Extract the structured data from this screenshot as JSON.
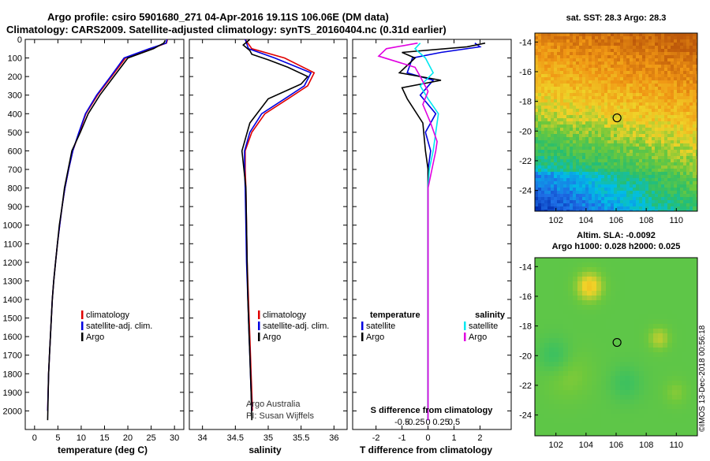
{
  "figure": {
    "title_line1": "Argo profile: csiro 5901680_271 04-Apr-2016 19.11S 106.06E (DM data)",
    "title_line2": "Climatology: CARS2009. Satellite-adjusted climatology: synTS_20160404.nc (0.31d earlier)",
    "watermark": "©IMOS 13-Dec-2018 00:56:18",
    "credit_line1": "Argo Australia",
    "credit_line2": "PI: Susan Wijffels"
  },
  "colors": {
    "climatology": "#e00000",
    "satellite_adj": "#0000e0",
    "argo": "#000000",
    "satellite": "#00e8f0",
    "argo_salinity_diff": "#e000e0"
  },
  "chart_data": [
    {
      "id": "temperature",
      "type": "line",
      "xlabel": "temperature (deg C)",
      "xlim": [
        -2,
        32
      ],
      "xticks": [
        0,
        5,
        10,
        15,
        20,
        25,
        30
      ],
      "ylim": [
        2100,
        0
      ],
      "yticks": [
        0,
        100,
        200,
        300,
        400,
        500,
        600,
        700,
        800,
        900,
        1000,
        1100,
        1200,
        1300,
        1400,
        1500,
        1600,
        1700,
        1800,
        1900,
        2000
      ],
      "legend": [
        "climatology",
        "satellite-adj. clim.",
        "Argo"
      ],
      "series": [
        {
          "name": "climatology",
          "x": [
            28.5,
            28.3,
            25.0,
            19.5,
            16.5,
            13.5,
            11.0,
            9.6,
            8.2,
            7.3,
            6.5,
            5.9,
            5.4,
            4.9,
            4.5,
            4.1,
            3.8,
            3.6,
            3.4,
            3.2,
            3.0,
            2.8
          ],
          "y": [
            0,
            20,
            50,
            100,
            200,
            300,
            400,
            500,
            600,
            700,
            800,
            900,
            1000,
            1100,
            1200,
            1300,
            1400,
            1500,
            1600,
            1700,
            1800,
            2000
          ]
        },
        {
          "name": "satellite-adj. clim.",
          "x": [
            28.4,
            28.2,
            24.6,
            19.2,
            16.3,
            13.3,
            10.9,
            9.5,
            8.2,
            7.3,
            6.5,
            5.9,
            5.4,
            4.9,
            4.5,
            4.1,
            3.8,
            3.6,
            3.4,
            3.2,
            3.0,
            2.8
          ],
          "y": [
            0,
            20,
            50,
            100,
            200,
            300,
            400,
            500,
            600,
            700,
            800,
            900,
            1000,
            1100,
            1200,
            1300,
            1400,
            1500,
            1600,
            1700,
            1800,
            2000
          ]
        },
        {
          "name": "Argo",
          "x": [
            28.0,
            27.7,
            25.5,
            20.0,
            17.0,
            14.0,
            11.5,
            9.8,
            8.0,
            7.2,
            6.4,
            5.9,
            5.3,
            4.9,
            4.5,
            4.1,
            3.8,
            3.6,
            3.4,
            3.2,
            3.0,
            2.8
          ],
          "y": [
            5,
            20,
            50,
            100,
            200,
            300,
            400,
            500,
            600,
            700,
            800,
            900,
            1000,
            1100,
            1200,
            1300,
            1400,
            1500,
            1600,
            1700,
            1800,
            2050
          ]
        }
      ]
    },
    {
      "id": "salinity",
      "type": "line",
      "xlabel": "salinity",
      "xlim": [
        33.8,
        36.2
      ],
      "xticks": [
        34,
        34.5,
        35,
        35.5,
        36
      ],
      "ylim": [
        2100,
        0
      ],
      "legend": [
        "climatology",
        "satellite-adj. clim.",
        "Argo"
      ],
      "series": [
        {
          "name": "climatology",
          "x": [
            34.65,
            34.75,
            35.25,
            35.7,
            35.6,
            35.3,
            34.95,
            34.75,
            34.65,
            34.65,
            34.66,
            34.67,
            34.68,
            34.7,
            34.71,
            34.72,
            34.73,
            34.74,
            34.75,
            34.76
          ],
          "y": [
            0,
            50,
            100,
            180,
            250,
            320,
            400,
            500,
            600,
            700,
            800,
            1000,
            1200,
            1400,
            1500,
            1600,
            1700,
            1800,
            1900,
            2000
          ]
        },
        {
          "name": "satellite-adj. clim.",
          "x": [
            34.65,
            34.7,
            35.1,
            35.65,
            35.55,
            35.25,
            34.9,
            34.72,
            34.64,
            34.64,
            34.65,
            34.66,
            34.67,
            34.69,
            34.7,
            34.71,
            34.72,
            34.73,
            34.74,
            34.75
          ],
          "y": [
            0,
            50,
            100,
            180,
            250,
            320,
            400,
            500,
            600,
            700,
            800,
            1000,
            1200,
            1400,
            1500,
            1600,
            1700,
            1800,
            1900,
            2000
          ]
        },
        {
          "name": "Argo",
          "x": [
            34.72,
            34.62,
            34.72,
            34.75,
            35.0,
            35.3,
            35.6,
            35.5,
            35.0,
            34.72,
            34.6,
            34.63,
            34.66,
            34.67,
            34.68,
            34.69,
            34.7,
            34.71,
            34.72,
            34.73,
            34.74,
            34.75
          ],
          "y": [
            0,
            30,
            60,
            80,
            110,
            150,
            200,
            240,
            320,
            450,
            600,
            700,
            800,
            1000,
            1200,
            1400,
            1500,
            1600,
            1700,
            1800,
            1900,
            2050
          ]
        }
      ]
    },
    {
      "id": "differences",
      "type": "line",
      "xlabel_bottom": "T difference from climatology",
      "xlabel_top": "S difference from climatology",
      "xlim": [
        -2.9,
        3.2
      ],
      "xticks_T": [
        -2,
        -1,
        0,
        1,
        2
      ],
      "xticks_S": [
        -0.5,
        -0.25,
        0,
        0.25,
        0.5
      ],
      "ylim": [
        2100,
        0
      ],
      "legend_left_title": "temperature",
      "legend_right_title": "salinity",
      "legend_left": [
        "satellite",
        "Argo"
      ],
      "legend_right": [
        "satellite",
        "Argo"
      ],
      "series": [
        {
          "name": "temperature satellite",
          "x": [
            1.8,
            2.0,
            0.5,
            -0.6,
            -0.8,
            0.2,
            -0.3,
            0.3,
            -0.1,
            0.1,
            0.0,
            0.0,
            0.0,
            0.0,
            0.0,
            0.0
          ],
          "y": [
            20,
            40,
            70,
            100,
            180,
            220,
            300,
            400,
            500,
            600,
            700,
            900,
            1200,
            1500,
            1800,
            2050
          ]
        },
        {
          "name": "temperature Argo",
          "x": [
            2.2,
            1.5,
            -1.0,
            -0.5,
            -1.1,
            0.5,
            -1.0,
            -0.8,
            -0.2,
            -0.1,
            0.0,
            0.0,
            0.0,
            0.0,
            0.0,
            0.0
          ],
          "y": [
            20,
            40,
            70,
            100,
            180,
            220,
            260,
            320,
            450,
            600,
            700,
            900,
            1200,
            1500,
            1800,
            2050
          ]
        },
        {
          "name": "salinity satellite",
          "x": [
            -0.3,
            -0.5,
            -0.1,
            0.2,
            -0.3,
            0.0,
            0.4,
            0.3,
            0.2,
            0.05,
            0.0,
            0.0,
            0.0,
            0.0,
            0.0,
            0.0
          ],
          "y": [
            20,
            50,
            100,
            180,
            250,
            320,
            400,
            500,
            600,
            700,
            800,
            1000,
            1300,
            1600,
            1800,
            2050
          ]
        },
        {
          "name": "salinity Argo",
          "x": [
            -0.4,
            -1.6,
            -1.9,
            -0.5,
            -0.3,
            0.0,
            -0.2,
            0.1,
            0.35,
            0.3,
            0.15,
            0.0,
            0.0,
            0.0,
            0.0,
            0.0
          ],
          "y": [
            20,
            50,
            90,
            150,
            200,
            280,
            350,
            450,
            550,
            600,
            700,
            800,
            1000,
            1300,
            1800,
            2050
          ]
        }
      ]
    },
    {
      "id": "sst_map",
      "type": "heatmap",
      "title": "sat. SST: 28.3  Argo: 28.3",
      "xlim": [
        100.6,
        111.4
      ],
      "ylim": [
        -25.4,
        -13.4
      ],
      "xticks": [
        102,
        104,
        106,
        108,
        110
      ],
      "yticks": [
        -14,
        -16,
        -18,
        -20,
        -22,
        -24
      ],
      "marker": {
        "lon": 106.06,
        "lat": -19.11
      }
    },
    {
      "id": "sla_map",
      "type": "heatmap",
      "title_line1": "Altim. SLA: -0.0092",
      "title_line2": "Argo h1000: 0.028 h2000: 0.025",
      "xlim": [
        100.6,
        111.4
      ],
      "ylim": [
        -25.4,
        -13.4
      ],
      "xticks": [
        102,
        104,
        106,
        108,
        110
      ],
      "yticks": [
        -14,
        -16,
        -18,
        -20,
        -22,
        -24
      ],
      "marker": {
        "lon": 106.06,
        "lat": -19.11
      }
    }
  ]
}
